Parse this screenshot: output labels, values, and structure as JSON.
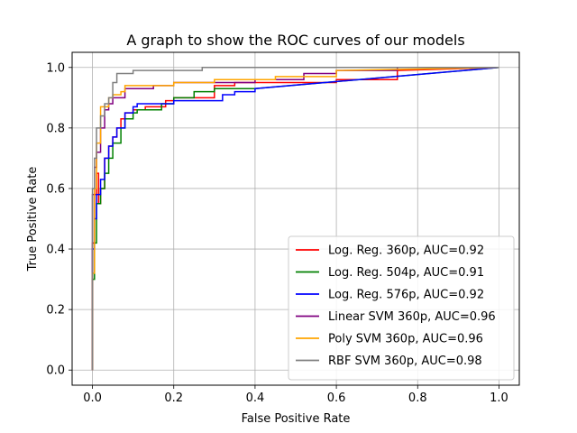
{
  "chart_data": {
    "type": "line",
    "title": "A graph to show the ROC curves of our models",
    "xlabel": "False Positive Rate",
    "ylabel": "True Positive Rate",
    "xlim": [
      -0.05,
      1.05
    ],
    "ylim": [
      -0.05,
      1.05
    ],
    "xticks": [
      "0.0",
      "0.2",
      "0.4",
      "0.6",
      "0.8",
      "1.0"
    ],
    "yticks": [
      "0.0",
      "0.2",
      "0.4",
      "0.6",
      "0.8",
      "1.0"
    ],
    "grid": true,
    "legend_position": "lower-right",
    "series": [
      {
        "name": "Log. Reg. 360p, AUC=0.92",
        "color": "#ff0000",
        "points": [
          [
            0,
            0
          ],
          [
            0,
            0.42
          ],
          [
            0.005,
            0.42
          ],
          [
            0.005,
            0.58
          ],
          [
            0.01,
            0.58
          ],
          [
            0.01,
            0.65
          ],
          [
            0.015,
            0.65
          ],
          [
            0.015,
            0.55
          ],
          [
            0.02,
            0.55
          ],
          [
            0.02,
            0.6
          ],
          [
            0.03,
            0.6
          ],
          [
            0.03,
            0.7
          ],
          [
            0.04,
            0.7
          ],
          [
            0.04,
            0.74
          ],
          [
            0.05,
            0.74
          ],
          [
            0.05,
            0.77
          ],
          [
            0.06,
            0.77
          ],
          [
            0.06,
            0.8
          ],
          [
            0.07,
            0.8
          ],
          [
            0.07,
            0.83
          ],
          [
            0.08,
            0.83
          ],
          [
            0.08,
            0.85
          ],
          [
            0.1,
            0.85
          ],
          [
            0.1,
            0.86
          ],
          [
            0.13,
            0.86
          ],
          [
            0.13,
            0.87
          ],
          [
            0.18,
            0.87
          ],
          [
            0.18,
            0.89
          ],
          [
            0.2,
            0.89
          ],
          [
            0.2,
            0.9
          ],
          [
            0.3,
            0.9
          ],
          [
            0.3,
            0.94
          ],
          [
            0.35,
            0.94
          ],
          [
            0.35,
            0.95
          ],
          [
            0.6,
            0.95
          ],
          [
            0.6,
            0.96
          ],
          [
            0.75,
            0.96
          ],
          [
            0.75,
            0.99
          ],
          [
            1,
            1
          ]
        ]
      },
      {
        "name": "Log. Reg. 504p, AUC=0.91",
        "color": "#008000",
        "points": [
          [
            0,
            0
          ],
          [
            0,
            0.3
          ],
          [
            0.005,
            0.3
          ],
          [
            0.005,
            0.42
          ],
          [
            0.01,
            0.42
          ],
          [
            0.01,
            0.55
          ],
          [
            0.02,
            0.55
          ],
          [
            0.02,
            0.6
          ],
          [
            0.03,
            0.6
          ],
          [
            0.03,
            0.65
          ],
          [
            0.04,
            0.65
          ],
          [
            0.04,
            0.7
          ],
          [
            0.05,
            0.7
          ],
          [
            0.05,
            0.75
          ],
          [
            0.07,
            0.75
          ],
          [
            0.07,
            0.8
          ],
          [
            0.08,
            0.8
          ],
          [
            0.08,
            0.83
          ],
          [
            0.1,
            0.83
          ],
          [
            0.1,
            0.85
          ],
          [
            0.11,
            0.85
          ],
          [
            0.11,
            0.86
          ],
          [
            0.17,
            0.86
          ],
          [
            0.17,
            0.88
          ],
          [
            0.2,
            0.88
          ],
          [
            0.2,
            0.9
          ],
          [
            0.25,
            0.9
          ],
          [
            0.25,
            0.92
          ],
          [
            0.3,
            0.92
          ],
          [
            0.3,
            0.93
          ],
          [
            0.4,
            0.93
          ],
          [
            1,
            1
          ]
        ]
      },
      {
        "name": "Log. Reg. 576p, AUC=0.92",
        "color": "#0000ff",
        "points": [
          [
            0,
            0
          ],
          [
            0,
            0.4
          ],
          [
            0.005,
            0.4
          ],
          [
            0.005,
            0.5
          ],
          [
            0.01,
            0.5
          ],
          [
            0.01,
            0.58
          ],
          [
            0.02,
            0.58
          ],
          [
            0.02,
            0.63
          ],
          [
            0.03,
            0.63
          ],
          [
            0.03,
            0.7
          ],
          [
            0.04,
            0.7
          ],
          [
            0.04,
            0.74
          ],
          [
            0.05,
            0.74
          ],
          [
            0.05,
            0.77
          ],
          [
            0.06,
            0.77
          ],
          [
            0.06,
            0.8
          ],
          [
            0.08,
            0.8
          ],
          [
            0.08,
            0.85
          ],
          [
            0.1,
            0.85
          ],
          [
            0.1,
            0.87
          ],
          [
            0.11,
            0.87
          ],
          [
            0.11,
            0.88
          ],
          [
            0.2,
            0.88
          ],
          [
            0.2,
            0.89
          ],
          [
            0.32,
            0.89
          ],
          [
            0.32,
            0.91
          ],
          [
            0.35,
            0.91
          ],
          [
            0.35,
            0.92
          ],
          [
            0.4,
            0.92
          ],
          [
            0.4,
            0.93
          ],
          [
            1,
            1
          ]
        ]
      },
      {
        "name": "Linear SVM 360p, AUC=0.96",
        "color": "#800080",
        "points": [
          [
            0,
            0
          ],
          [
            0,
            0.58
          ],
          [
            0.005,
            0.58
          ],
          [
            0.005,
            0.67
          ],
          [
            0.01,
            0.67
          ],
          [
            0.01,
            0.72
          ],
          [
            0.02,
            0.72
          ],
          [
            0.02,
            0.8
          ],
          [
            0.03,
            0.8
          ],
          [
            0.03,
            0.86
          ],
          [
            0.04,
            0.86
          ],
          [
            0.04,
            0.88
          ],
          [
            0.05,
            0.88
          ],
          [
            0.05,
            0.9
          ],
          [
            0.08,
            0.9
          ],
          [
            0.08,
            0.93
          ],
          [
            0.15,
            0.93
          ],
          [
            0.15,
            0.94
          ],
          [
            0.2,
            0.94
          ],
          [
            0.2,
            0.95
          ],
          [
            0.4,
            0.95
          ],
          [
            0.4,
            0.96
          ],
          [
            0.52,
            0.96
          ],
          [
            0.52,
            0.98
          ],
          [
            0.6,
            0.98
          ],
          [
            0.6,
            0.99
          ],
          [
            0.75,
            0.99
          ],
          [
            0.75,
            1
          ],
          [
            1,
            1
          ]
        ]
      },
      {
        "name": "Poly SVM 360p, AUC=0.96",
        "color": "#ffa500",
        "points": [
          [
            0,
            0
          ],
          [
            0,
            0.32
          ],
          [
            0.005,
            0.32
          ],
          [
            0.005,
            0.6
          ],
          [
            0.01,
            0.6
          ],
          [
            0.01,
            0.75
          ],
          [
            0.02,
            0.75
          ],
          [
            0.02,
            0.87
          ],
          [
            0.04,
            0.87
          ],
          [
            0.04,
            0.9
          ],
          [
            0.05,
            0.9
          ],
          [
            0.05,
            0.91
          ],
          [
            0.07,
            0.91
          ],
          [
            0.07,
            0.92
          ],
          [
            0.08,
            0.92
          ],
          [
            0.08,
            0.94
          ],
          [
            0.2,
            0.94
          ],
          [
            0.2,
            0.95
          ],
          [
            0.3,
            0.95
          ],
          [
            0.3,
            0.96
          ],
          [
            0.45,
            0.96
          ],
          [
            0.45,
            0.97
          ],
          [
            0.6,
            0.97
          ],
          [
            0.6,
            0.99
          ],
          [
            1,
            1
          ]
        ]
      },
      {
        "name": "RBF SVM 360p, AUC=0.98",
        "color": "#808080",
        "points": [
          [
            0,
            0
          ],
          [
            0,
            0.6
          ],
          [
            0.005,
            0.6
          ],
          [
            0.005,
            0.7
          ],
          [
            0.01,
            0.7
          ],
          [
            0.01,
            0.8
          ],
          [
            0.02,
            0.8
          ],
          [
            0.02,
            0.84
          ],
          [
            0.03,
            0.84
          ],
          [
            0.03,
            0.88
          ],
          [
            0.04,
            0.88
          ],
          [
            0.04,
            0.9
          ],
          [
            0.05,
            0.9
          ],
          [
            0.05,
            0.95
          ],
          [
            0.06,
            0.95
          ],
          [
            0.06,
            0.98
          ],
          [
            0.1,
            0.98
          ],
          [
            0.1,
            0.99
          ],
          [
            0.27,
            0.99
          ],
          [
            0.27,
            1
          ],
          [
            1,
            1
          ]
        ]
      }
    ]
  }
}
